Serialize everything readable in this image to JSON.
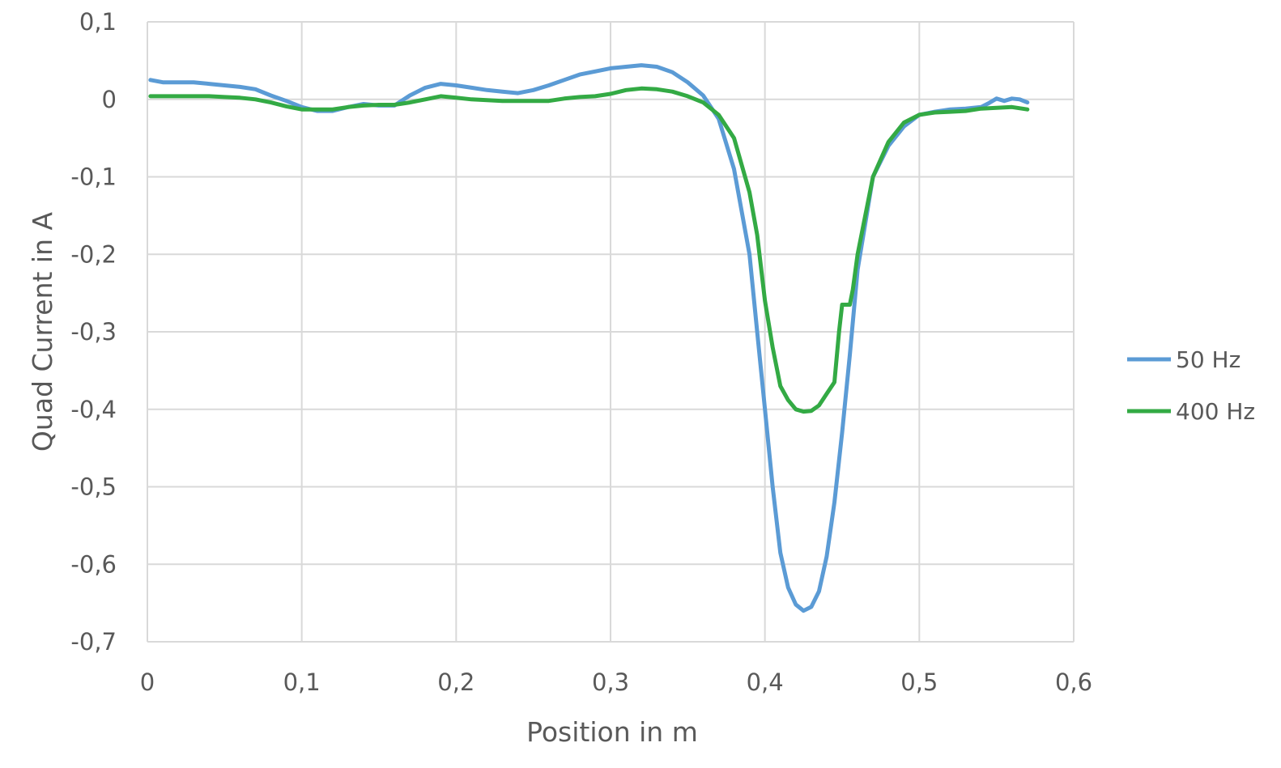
{
  "chart_data": {
    "type": "line",
    "title": "",
    "xlabel": "Position in m",
    "ylabel": "Quad Current in A",
    "xlim": [
      0,
      0.6
    ],
    "ylim": [
      -0.7,
      0.1
    ],
    "xticks": [
      0,
      0.1,
      0.2,
      0.3,
      0.4,
      0.5,
      0.6
    ],
    "yticks": [
      0.1,
      0,
      -0.1,
      -0.2,
      -0.3,
      -0.4,
      -0.5,
      -0.6,
      -0.7
    ],
    "xtick_labels": [
      "0",
      "0,1",
      "0,2",
      "0,3",
      "0,4",
      "0,5",
      "0,6"
    ],
    "ytick_labels": [
      "0,1",
      "0",
      "-0,1",
      "-0,2",
      "-0,3",
      "-0,4",
      "-0,5",
      "-0,6",
      "-0,7"
    ],
    "grid": true,
    "legend_position": "right",
    "series": [
      {
        "name": "50 Hz",
        "color": "#5b9bd5",
        "x": [
          0.002,
          0.01,
          0.02,
          0.03,
          0.04,
          0.05,
          0.06,
          0.07,
          0.08,
          0.09,
          0.1,
          0.11,
          0.12,
          0.13,
          0.14,
          0.15,
          0.16,
          0.17,
          0.18,
          0.19,
          0.2,
          0.21,
          0.22,
          0.23,
          0.24,
          0.25,
          0.26,
          0.27,
          0.28,
          0.29,
          0.3,
          0.31,
          0.32,
          0.33,
          0.34,
          0.35,
          0.36,
          0.37,
          0.38,
          0.39,
          0.395,
          0.4,
          0.405,
          0.41,
          0.415,
          0.42,
          0.425,
          0.43,
          0.435,
          0.44,
          0.445,
          0.45,
          0.455,
          0.46,
          0.465,
          0.47,
          0.48,
          0.49,
          0.5,
          0.51,
          0.52,
          0.53,
          0.54,
          0.545,
          0.55,
          0.555,
          0.56,
          0.565,
          0.57
        ],
        "values": [
          0.025,
          0.022,
          0.022,
          0.022,
          0.02,
          0.018,
          0.016,
          0.013,
          0.005,
          -0.002,
          -0.01,
          -0.015,
          -0.015,
          -0.01,
          -0.006,
          -0.008,
          -0.008,
          0.005,
          0.015,
          0.02,
          0.018,
          0.015,
          0.012,
          0.01,
          0.008,
          0.012,
          0.018,
          0.025,
          0.032,
          0.036,
          0.04,
          0.042,
          0.044,
          0.042,
          0.035,
          0.022,
          0.005,
          -0.025,
          -0.09,
          -0.2,
          -0.3,
          -0.4,
          -0.5,
          -0.585,
          -0.63,
          -0.652,
          -0.66,
          -0.655,
          -0.635,
          -0.59,
          -0.52,
          -0.43,
          -0.33,
          -0.22,
          -0.16,
          -0.1,
          -0.06,
          -0.035,
          -0.02,
          -0.016,
          -0.013,
          -0.012,
          -0.01,
          -0.005,
          0.001,
          -0.002,
          0.001,
          0.0,
          -0.004
        ]
      },
      {
        "name": "400 Hz",
        "color": "#33aa44",
        "x": [
          0.002,
          0.01,
          0.02,
          0.03,
          0.04,
          0.05,
          0.06,
          0.07,
          0.08,
          0.09,
          0.1,
          0.11,
          0.12,
          0.13,
          0.14,
          0.15,
          0.16,
          0.17,
          0.18,
          0.19,
          0.2,
          0.21,
          0.22,
          0.23,
          0.24,
          0.25,
          0.26,
          0.27,
          0.28,
          0.29,
          0.3,
          0.31,
          0.32,
          0.33,
          0.34,
          0.35,
          0.36,
          0.37,
          0.38,
          0.39,
          0.395,
          0.4,
          0.405,
          0.41,
          0.415,
          0.42,
          0.425,
          0.43,
          0.435,
          0.44,
          0.445,
          0.448,
          0.45,
          0.455,
          0.457,
          0.46,
          0.465,
          0.47,
          0.48,
          0.49,
          0.5,
          0.51,
          0.52,
          0.53,
          0.54,
          0.55,
          0.56,
          0.57
        ],
        "values": [
          0.004,
          0.004,
          0.004,
          0.004,
          0.004,
          0.003,
          0.002,
          0.0,
          -0.004,
          -0.009,
          -0.013,
          -0.013,
          -0.013,
          -0.01,
          -0.008,
          -0.007,
          -0.007,
          -0.004,
          0.0,
          0.004,
          0.002,
          0.0,
          -0.001,
          -0.002,
          -0.002,
          -0.002,
          -0.002,
          0.001,
          0.003,
          0.004,
          0.007,
          0.012,
          0.014,
          0.013,
          0.01,
          0.004,
          -0.004,
          -0.02,
          -0.05,
          -0.12,
          -0.175,
          -0.26,
          -0.32,
          -0.37,
          -0.388,
          -0.4,
          -0.403,
          -0.402,
          -0.395,
          -0.38,
          -0.365,
          -0.3,
          -0.265,
          -0.265,
          -0.245,
          -0.2,
          -0.15,
          -0.1,
          -0.055,
          -0.03,
          -0.02,
          -0.017,
          -0.016,
          -0.015,
          -0.012,
          -0.011,
          -0.01,
          -0.013
        ]
      }
    ]
  }
}
